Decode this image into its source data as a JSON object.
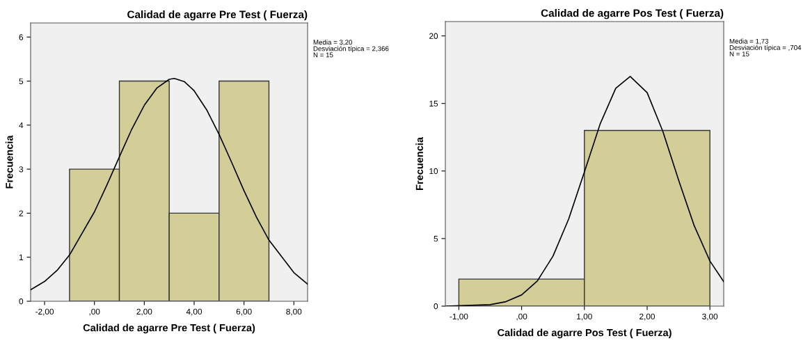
{
  "chart_data": [
    {
      "type": "histogram",
      "title": "Calidad de agarre Pre Test ( Fuerza)",
      "xlabel": "Calidad de agarre Pre Test ( Fuerza)",
      "ylabel": "Frecuencia",
      "series": [
        {
          "bins": [
            -1,
            1,
            3,
            5,
            7
          ],
          "values": [
            3,
            5,
            2,
            5
          ],
          "color": "#d3ce98"
        },
        {
          "type": "line",
          "color": "#000000",
          "x": [
            -2.56,
            -2,
            -1.5,
            -1,
            0,
            0.5,
            1,
            1.5,
            2,
            2.5,
            3,
            3.2,
            3.6,
            4,
            4.5,
            5,
            5.5,
            6,
            6.5,
            7,
            8,
            8.55
          ],
          "values": [
            0.26,
            0.45,
            0.7,
            1.05,
            2.03,
            2.64,
            3.28,
            3.91,
            4.45,
            4.84,
            5.04,
            5.06,
            4.99,
            4.78,
            4.35,
            3.79,
            3.16,
            2.51,
            1.91,
            1.39,
            0.65,
            0.39
          ]
        }
      ],
      "xlim": [
        -2.56,
        8.55
      ],
      "ylim": [
        0,
        6.32
      ],
      "xticks": [
        {
          "value": -2,
          "label": "-2,00"
        },
        {
          "value": 0,
          "label": ",00"
        },
        {
          "value": 2,
          "label": "2,00"
        },
        {
          "value": 4,
          "label": "4,00"
        },
        {
          "value": 6,
          "label": "6,00"
        },
        {
          "value": 8,
          "label": "8,00"
        }
      ],
      "yticks": [
        0,
        1,
        2,
        3,
        4,
        5,
        6
      ],
      "annotations": [
        "Media = 3,20\nDesviación típica = 2,366\nN = 15"
      ],
      "grid": false,
      "legend": false
    },
    {
      "type": "histogram",
      "title": "Calidad de agarre Pos Test ( Fuerza)",
      "xlabel": "Calidad de agarre Pos Test ( Fuerza)",
      "ylabel": "Frecuencia",
      "series": [
        {
          "bins": [
            -1,
            1,
            3
          ],
          "values": [
            2,
            13
          ],
          "color": "#d3ce98"
        },
        {
          "type": "line",
          "color": "#000000",
          "x": [
            -1.2,
            -0.5,
            -0.25,
            0,
            0.25,
            0.5,
            0.75,
            1,
            1.25,
            1.5,
            1.73,
            2,
            2.25,
            2.5,
            2.75,
            3,
            3.22
          ],
          "values": [
            0,
            0.11,
            0.33,
            0.83,
            1.86,
            3.7,
            6.45,
            9.93,
            13.47,
            16.12,
            17,
            15.8,
            12.94,
            9.35,
            5.95,
            3.34,
            1.81
          ]
        }
      ],
      "xlim": [
        -1.215,
        3.22
      ],
      "ylim": [
        0,
        21.06
      ],
      "xticks": [
        {
          "value": -1,
          "label": "-1,00"
        },
        {
          "value": 0,
          "label": ",00"
        },
        {
          "value": 1,
          "label": "1,00"
        },
        {
          "value": 2,
          "label": "2,00"
        },
        {
          "value": 3,
          "label": "3,00"
        }
      ],
      "yticks": [
        0,
        5,
        10,
        15,
        20
      ],
      "annotations": [
        "Media = 1,73\nDesviación típica = ,704\nN = 15"
      ],
      "grid": false,
      "legend": false
    }
  ]
}
